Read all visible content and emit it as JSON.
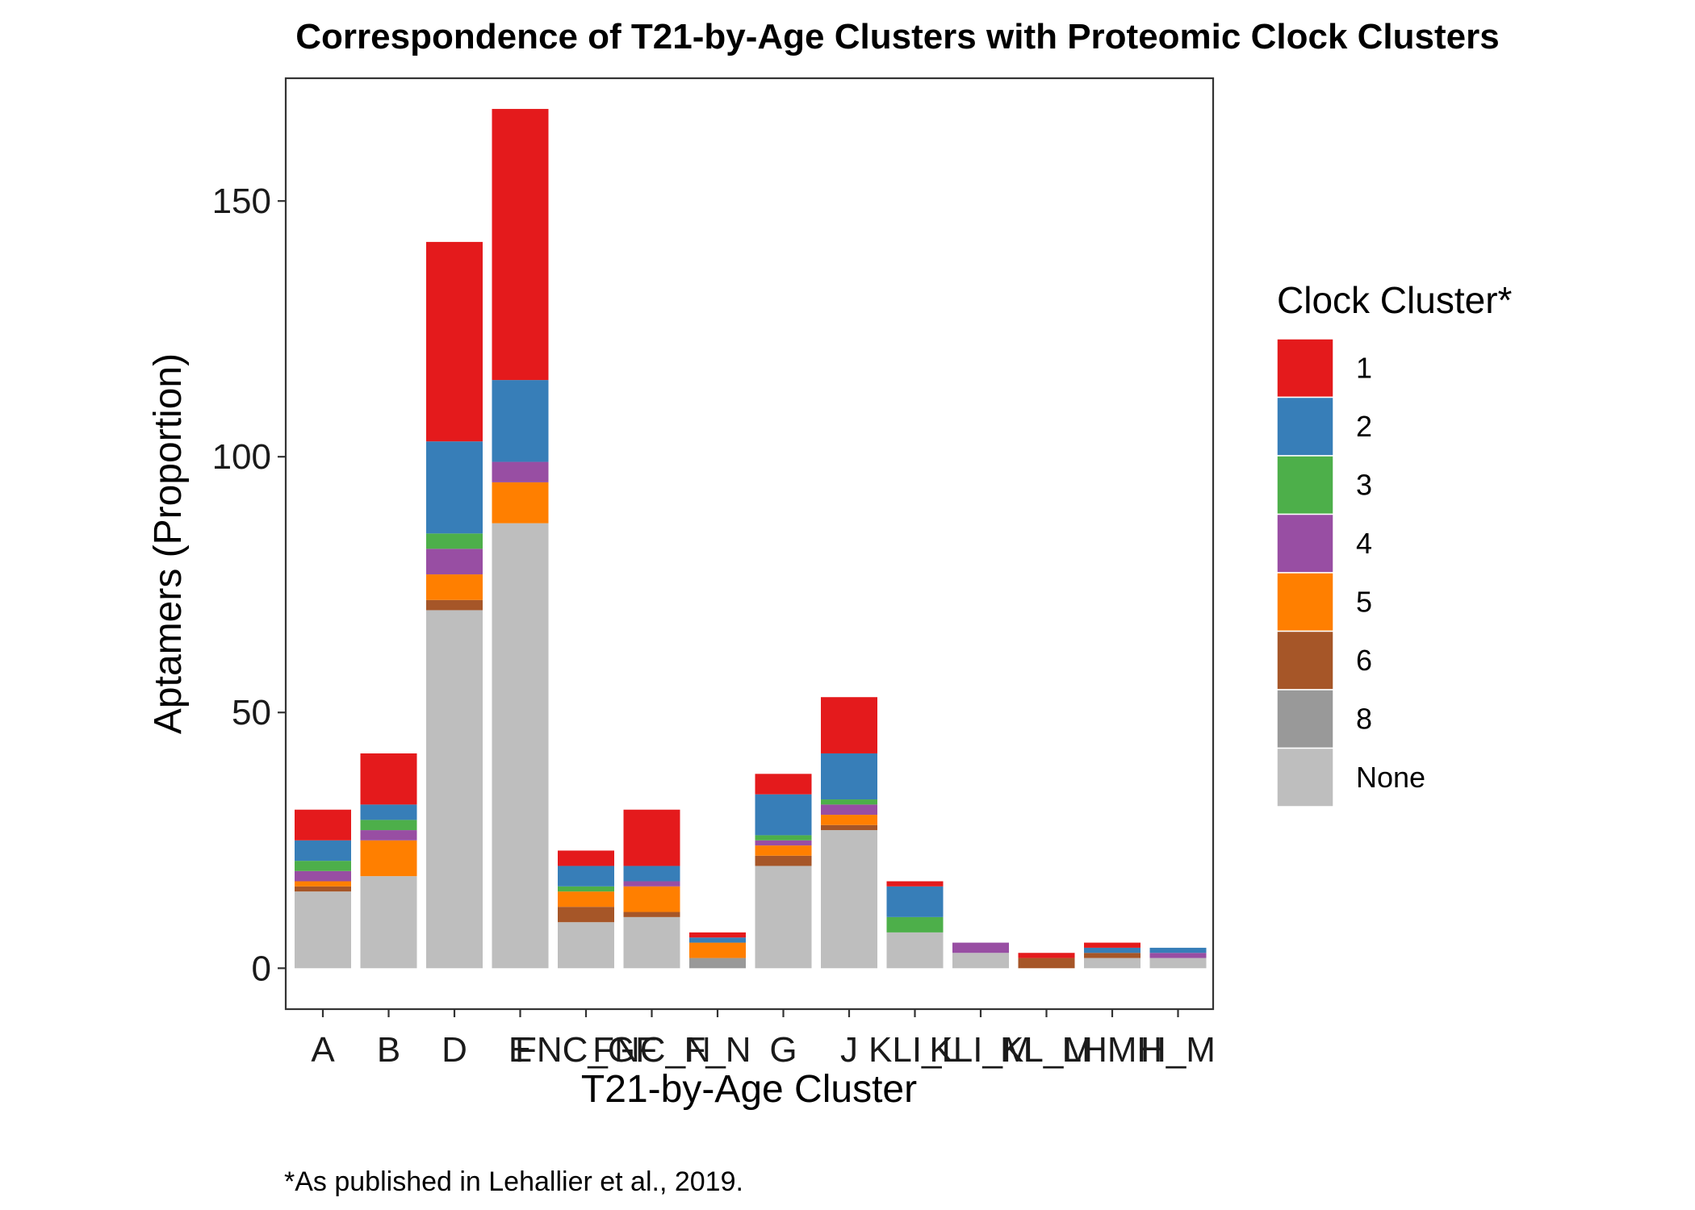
{
  "chart_data": {
    "type": "bar",
    "stacked": true,
    "title": "Correspondence of T21-by-Age Clusters with Proteomic Clock Clusters",
    "xlabel": "T21-by-Age Cluster",
    "ylabel": "Aptamers (Proportion)",
    "ylim": [
      -8,
      174
    ],
    "yticks": [
      0,
      50,
      100,
      150
    ],
    "grid": false,
    "legend": {
      "title": "Clock Cluster*",
      "position": "right"
    },
    "categories": [
      "A",
      "B",
      "D",
      "E",
      "FNC_GF",
      "FNC_N",
      "F_N",
      "G",
      "J",
      "KLI_L",
      "KLI_M",
      "KL_M",
      "LHMH",
      "H_M"
    ],
    "tick_labels": [
      "A",
      "B",
      "D",
      "E",
      "FNC_GF",
      "FNC_N",
      "F_N",
      "G",
      "J",
      "KLI_L",
      "KLI_M",
      "KL_M",
      "LHMH",
      "H_M"
    ],
    "series": [
      {
        "name": "None",
        "color": "#BEBEBE",
        "values": [
          15,
          18,
          70,
          87,
          9,
          10,
          0,
          20,
          27,
          7,
          3,
          0,
          2,
          2
        ]
      },
      {
        "name": "8",
        "color": "#999999",
        "values": [
          0,
          0,
          0,
          0,
          0,
          0,
          2,
          0,
          0,
          0,
          0,
          0,
          0,
          0
        ]
      },
      {
        "name": "6",
        "color": "#A65628",
        "values": [
          1,
          0,
          2,
          0,
          3,
          1,
          0,
          2,
          1,
          0,
          0,
          2,
          1,
          0
        ]
      },
      {
        "name": "5",
        "color": "#FF7F00",
        "values": [
          1,
          7,
          5,
          8,
          3,
          5,
          3,
          2,
          2,
          0,
          0,
          0,
          0,
          0
        ]
      },
      {
        "name": "4",
        "color": "#984EA3",
        "values": [
          2,
          2,
          5,
          4,
          0,
          1,
          0,
          1,
          2,
          0,
          2,
          0,
          0,
          1
        ]
      },
      {
        "name": "3",
        "color": "#4DAF4A",
        "values": [
          2,
          2,
          3,
          0,
          1,
          0,
          0,
          1,
          1,
          3,
          0,
          0,
          0,
          0
        ]
      },
      {
        "name": "2",
        "color": "#377EB8",
        "values": [
          4,
          3,
          18,
          16,
          4,
          3,
          1,
          8,
          9,
          6,
          0,
          0,
          1,
          1
        ]
      },
      {
        "name": "1",
        "color": "#E41A1C",
        "values": [
          6,
          10,
          39,
          53,
          3,
          11,
          1,
          4,
          11,
          1,
          0,
          1,
          1,
          0
        ]
      }
    ]
  },
  "legend_order": [
    "1",
    "2",
    "3",
    "4",
    "5",
    "6",
    "8",
    "None"
  ],
  "footnote": "*As published in Lehallier et al., 2019."
}
